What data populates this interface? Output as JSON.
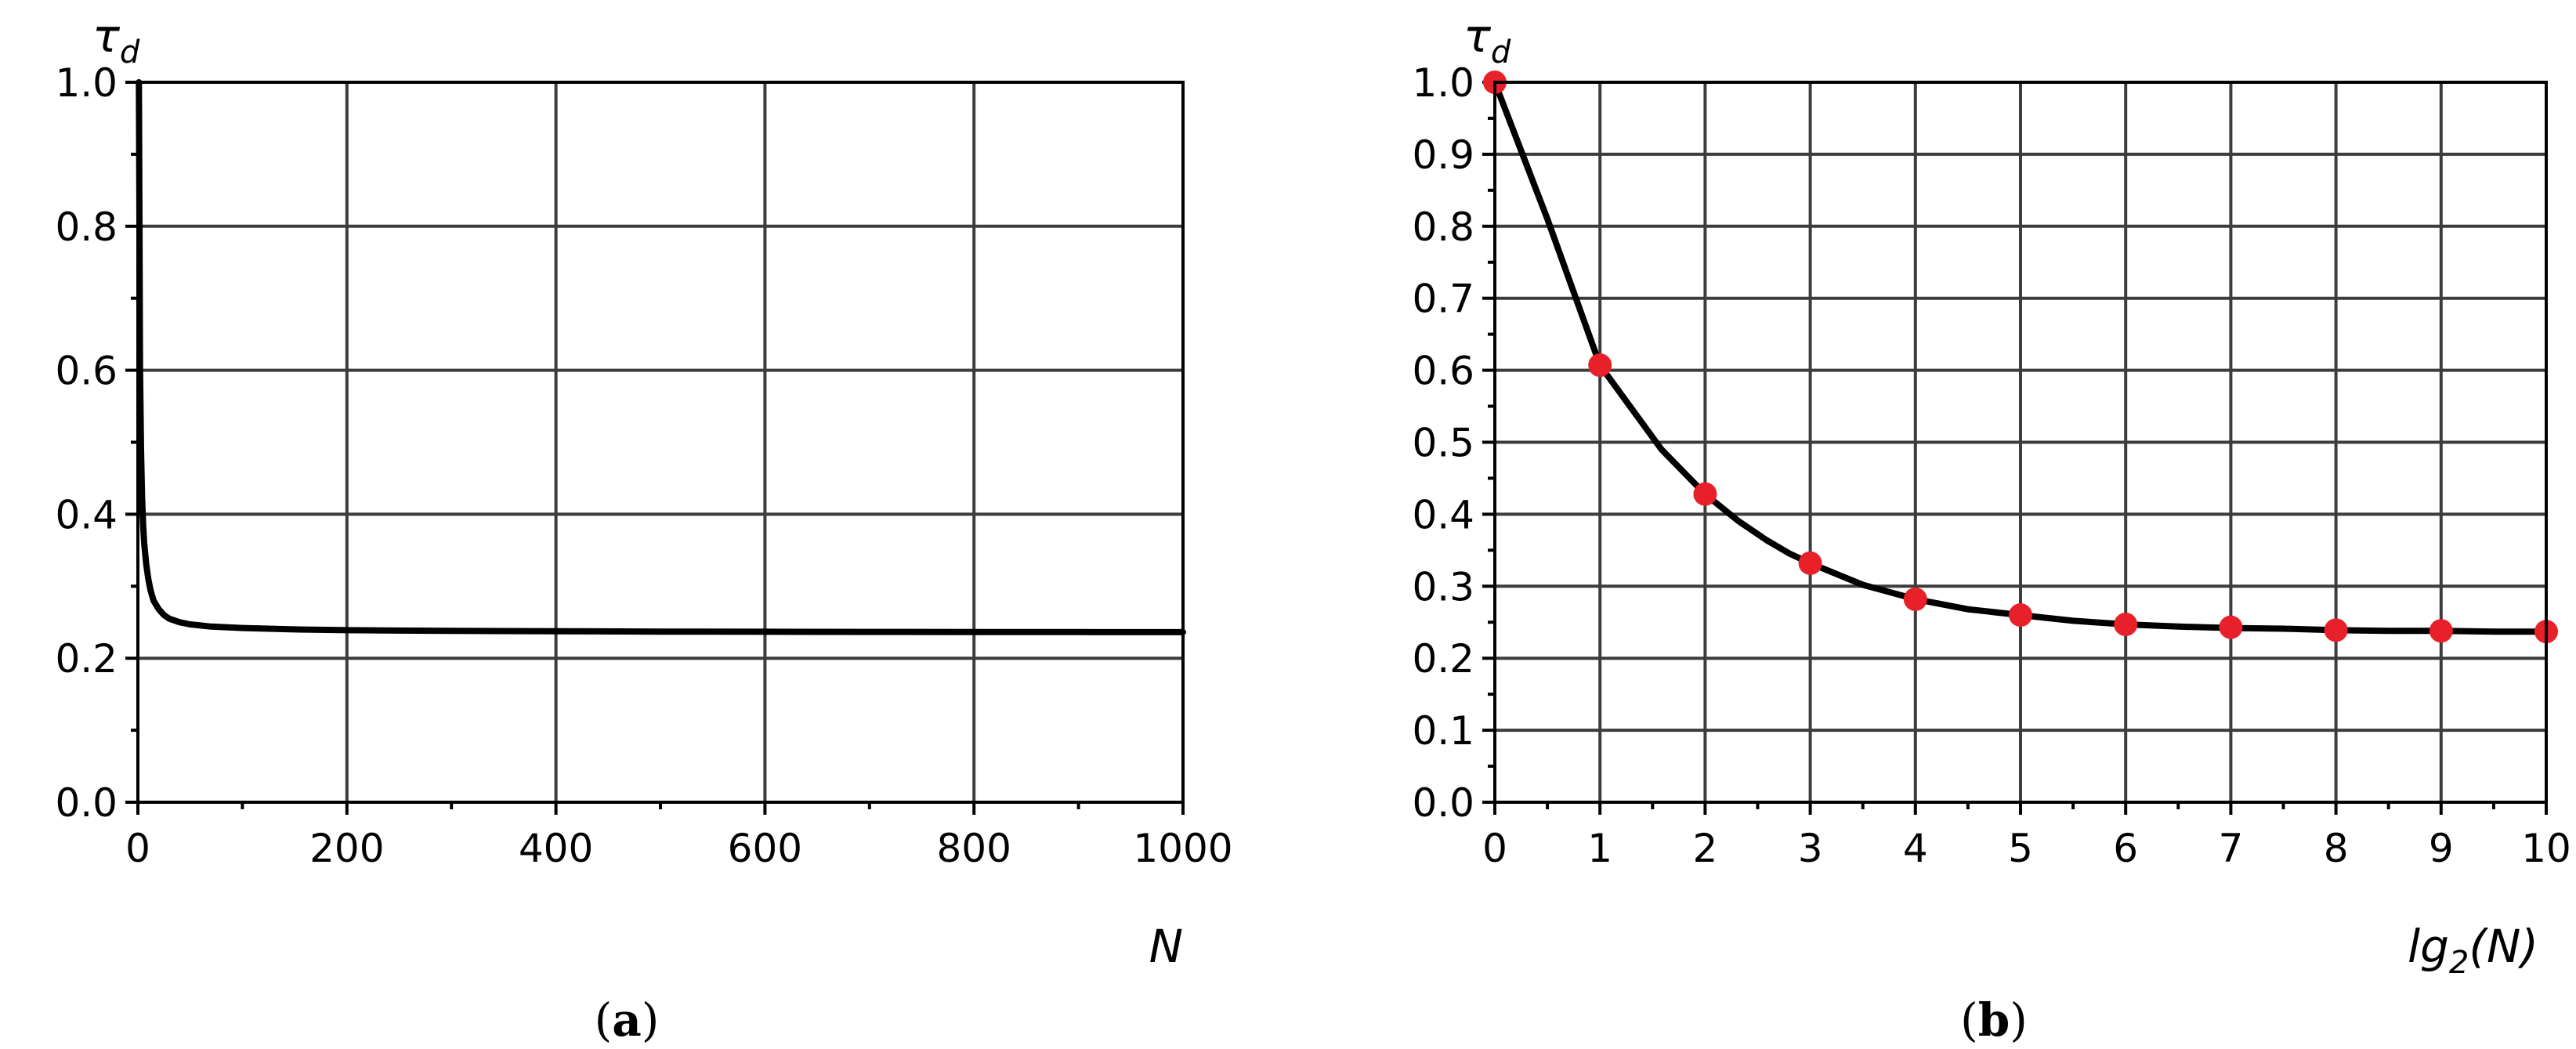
{
  "chart_data": [
    {
      "type": "line",
      "panel_caption": "a",
      "ylabel": "τ",
      "ylabel_sub": "d",
      "xlabel": "N",
      "xlim": [
        0,
        1000
      ],
      "ylim": [
        0.0,
        1.0
      ],
      "xticks": [
        0,
        200,
        400,
        600,
        800,
        1000
      ],
      "xtick_labels": [
        "0",
        "200",
        "400",
        "600",
        "800",
        "1000"
      ],
      "xminor": [
        100,
        300,
        500,
        700,
        900
      ],
      "yticks": [
        0.0,
        0.2,
        0.4,
        0.6,
        0.8,
        1.0
      ],
      "ytick_labels": [
        "0.0",
        "0.2",
        "0.4",
        "0.6",
        "0.8",
        "1.0"
      ],
      "yminor": [
        0.1,
        0.3,
        0.5,
        0.7,
        0.9
      ],
      "grid": true,
      "series": [
        {
          "color": "#000000",
          "x": [
            1,
            2,
            3,
            4,
            5,
            6,
            8,
            10,
            12,
            15,
            20,
            25,
            30,
            40,
            50,
            70,
            100,
            150,
            200,
            300,
            400,
            500,
            600,
            700,
            800,
            900,
            1000
          ],
          "y": [
            1.0,
            0.605,
            0.49,
            0.425,
            0.385,
            0.36,
            0.33,
            0.31,
            0.295,
            0.28,
            0.268,
            0.26,
            0.255,
            0.25,
            0.247,
            0.244,
            0.242,
            0.24,
            0.239,
            0.238,
            0.2375,
            0.237,
            0.2368,
            0.2366,
            0.2364,
            0.2363,
            0.2362
          ]
        }
      ]
    },
    {
      "type": "line",
      "panel_caption": "b",
      "ylabel": "τ",
      "ylabel_sub": "d",
      "xlabel": "lg",
      "xlabel_sub": "2",
      "xlabel_tail": "(N)",
      "xlim": [
        0,
        10
      ],
      "ylim": [
        0.0,
        1.0
      ],
      "xticks": [
        0,
        1,
        2,
        3,
        4,
        5,
        6,
        7,
        8,
        9,
        10
      ],
      "xtick_labels": [
        "0",
        "1",
        "2",
        "3",
        "4",
        "5",
        "6",
        "7",
        "8",
        "9",
        "10"
      ],
      "xminor": [
        0.5,
        1.5,
        2.5,
        3.5,
        4.5,
        5.5,
        6.5,
        7.5,
        8.5,
        9.5
      ],
      "yticks": [
        0.0,
        0.1,
        0.2,
        0.3,
        0.4,
        0.5,
        0.6,
        0.7,
        0.8,
        0.9,
        1.0
      ],
      "ytick_labels": [
        "0.0",
        "0.1",
        "0.2",
        "0.3",
        "0.4",
        "0.5",
        "0.6",
        "0.7",
        "0.8",
        "0.9",
        "1.0"
      ],
      "yminor": [
        0.05,
        0.15,
        0.25,
        0.35,
        0.45,
        0.55,
        0.65,
        0.75,
        0.85,
        0.95
      ],
      "grid": true,
      "series": [
        {
          "color": "#000000",
          "x": [
            0,
            0.5,
            1,
            1.585,
            2,
            2.322,
            2.585,
            2.807,
            3,
            3.5,
            4,
            4.5,
            5,
            5.5,
            6,
            6.5,
            7,
            7.5,
            8,
            8.5,
            9,
            9.5,
            10
          ],
          "y": [
            1.0,
            0.81,
            0.607,
            0.49,
            0.428,
            0.39,
            0.364,
            0.345,
            0.332,
            0.302,
            0.282,
            0.268,
            0.26,
            0.252,
            0.247,
            0.244,
            0.242,
            0.241,
            0.239,
            0.238,
            0.238,
            0.237,
            0.237
          ]
        }
      ],
      "markers": {
        "color": "#e8202a",
        "x": [
          0,
          1,
          2,
          3,
          4,
          5,
          6,
          7,
          8,
          9,
          10
        ],
        "y": [
          1.0,
          0.607,
          0.428,
          0.332,
          0.282,
          0.26,
          0.247,
          0.243,
          0.239,
          0.238,
          0.237
        ]
      }
    }
  ]
}
